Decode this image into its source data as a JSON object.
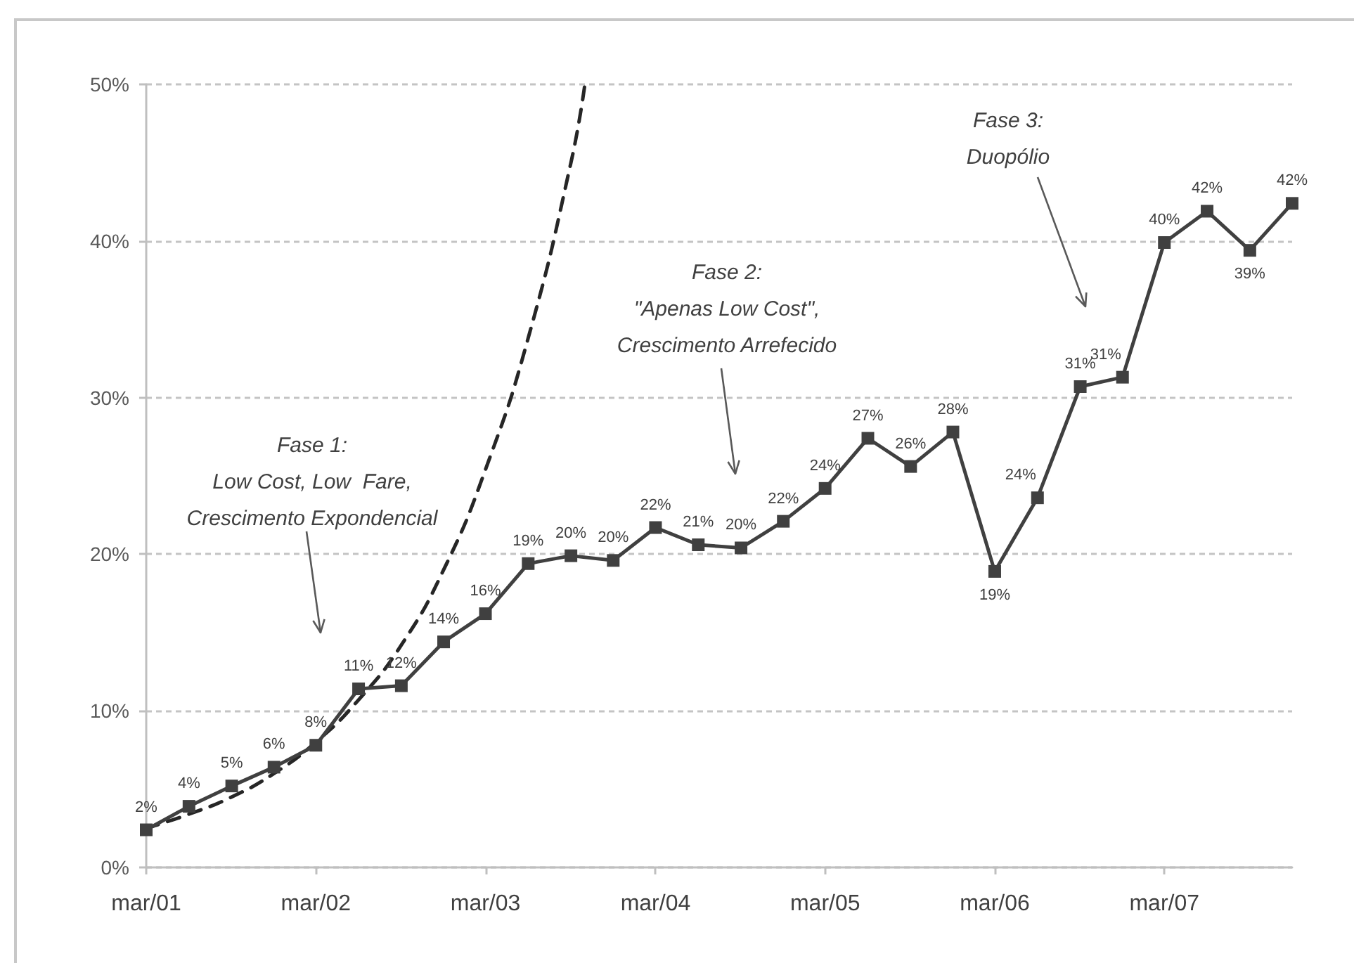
{
  "chart_data": {
    "type": "line",
    "annotations": [
      "Fase 1:\nLow Cost, Low  Fare,\nCrescimento Expondencial",
      "Fase 2:\n\"Apenas Low Cost\",\nCrescimento Arrefecido",
      "Fase 3:\nDuopólio"
    ],
    "x": [
      "2001-03",
      "2001-06",
      "2001-09",
      "2001-12",
      "2002-03",
      "2002-06",
      "2002-09",
      "2002-12",
      "2003-03",
      "2003-06",
      "2003-09",
      "2003-12",
      "2004-03",
      "2004-06",
      "2004-09",
      "2004-12",
      "2005-03",
      "2005-06",
      "2005-09",
      "2005-12",
      "2006-03",
      "2006-06",
      "2006-09",
      "2006-12",
      "2007-03",
      "2007-06",
      "2007-09",
      "2007-12"
    ],
    "series": [
      {
        "color": "#404040",
        "marker": "square",
        "line_style": "solid",
        "values": [
          2.4,
          3.9,
          5.2,
          6.4,
          7.8,
          11.4,
          11.6,
          14.4,
          16.2,
          19.4,
          19.9,
          19.6,
          21.7,
          20.6,
          20.4,
          22.1,
          24.2,
          27.4,
          25.6,
          27.8,
          18.9,
          23.6,
          30.7,
          31.3,
          39.9,
          41.9,
          39.4,
          42.4
        ],
        "value_labels": [
          "2%",
          "4%",
          "5%",
          "6%",
          "8%",
          "11%",
          "12%",
          "14%",
          "16%",
          "19%",
          "20%",
          "20%",
          "22%",
          "21%",
          "20%",
          "22%",
          "24%",
          "27%",
          "26%",
          "28%",
          "19%",
          "24%",
          "31%",
          "31%",
          "40%",
          "42%",
          "39%",
          "42%"
        ]
      },
      {
        "type": "line",
        "color": "#262626",
        "marker": "none",
        "line_style": "dashed",
        "x": [
          "2001-03",
          "2001-06",
          "2001-09",
          "2001-12",
          "2002-03",
          "2002-06",
          "2002-09",
          "2002-12",
          "2003-03",
          "2003-06",
          "2003-09",
          "2003-10"
        ],
        "values": [
          2.5,
          3.4,
          4.5,
          6.0,
          8.0,
          10.7,
          14.2,
          19.0,
          25.4,
          33.8,
          45.0,
          50
        ]
      }
    ],
    "xlim": [
      "2001-03",
      "2007-12"
    ],
    "xticks": [
      {
        "value": "2001-03",
        "label": "mar/01"
      },
      {
        "value": "2002-03",
        "label": "mar/02"
      },
      {
        "value": "2003-03",
        "label": "mar/03"
      },
      {
        "value": "2004-03",
        "label": "mar/04"
      },
      {
        "value": "2005-03",
        "label": "mar/05"
      },
      {
        "value": "2006-03",
        "label": "mar/06"
      },
      {
        "value": "2007-03",
        "label": "mar/07"
      }
    ],
    "ylim": [
      0,
      50
    ],
    "yticks": [
      {
        "value": 0,
        "label": "0%"
      },
      {
        "value": 10,
        "label": "10%"
      },
      {
        "value": 20,
        "label": "20%"
      },
      {
        "value": 30,
        "label": "30%"
      },
      {
        "value": 40,
        "label": "40%"
      },
      {
        "value": 50,
        "label": "50%"
      }
    ],
    "grid": "y"
  }
}
